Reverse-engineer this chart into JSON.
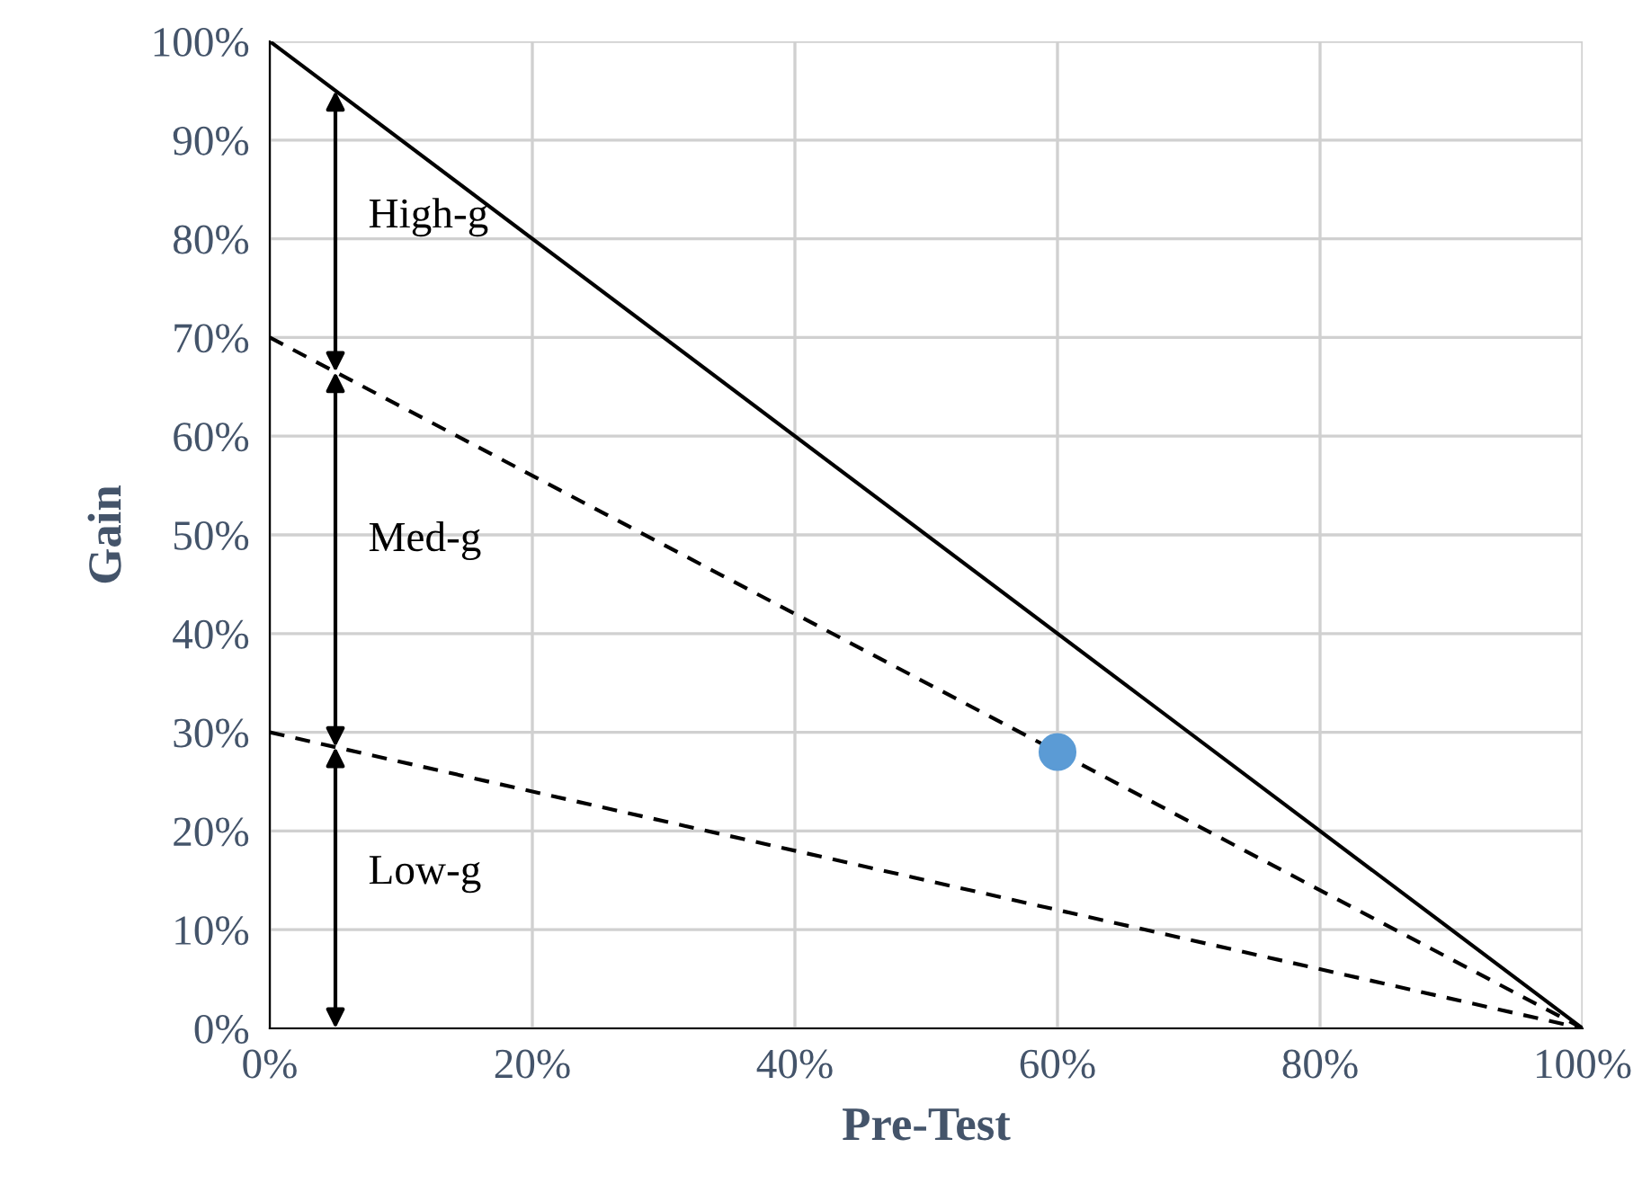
{
  "chart_data": {
    "type": "line",
    "xlabel": "Pre-Test",
    "ylabel": "Gain",
    "series": [
      {
        "x": [
          0,
          100
        ],
        "values": [
          100,
          0
        ],
        "color": "#000000",
        "line_style": "solid"
      },
      {
        "x": [
          0,
          100
        ],
        "values": [
          70,
          0
        ],
        "color": "#000000",
        "line_style": "dashed"
      },
      {
        "x": [
          0,
          100
        ],
        "values": [
          30,
          0
        ],
        "color": "#000000",
        "line_style": "dashed"
      },
      {
        "type": "scatter",
        "x": [
          60
        ],
        "values": [
          28
        ],
        "color": "#5b9bd5",
        "marker": "circle"
      }
    ],
    "annotations": [
      "High-g",
      "Med-g",
      "Low-g"
    ],
    "xlim": [
      0,
      100
    ],
    "ylim": [
      0,
      100
    ],
    "xticks": [
      {
        "value": 0,
        "label": "0%"
      },
      {
        "value": 20,
        "label": "20%"
      },
      {
        "value": 40,
        "label": "40%"
      },
      {
        "value": 60,
        "label": "60%"
      },
      {
        "value": 80,
        "label": "80%"
      },
      {
        "value": 100,
        "label": "100%"
      }
    ],
    "yticks": [
      {
        "value": 0,
        "label": "0%"
      },
      {
        "value": 10,
        "label": "10%"
      },
      {
        "value": 20,
        "label": "20%"
      },
      {
        "value": 30,
        "label": "30%"
      },
      {
        "value": 40,
        "label": "40%"
      },
      {
        "value": 50,
        "label": "50%"
      },
      {
        "value": 60,
        "label": "60%"
      },
      {
        "value": 70,
        "label": "70%"
      },
      {
        "value": 80,
        "label": "80%"
      },
      {
        "value": 90,
        "label": "90%"
      },
      {
        "value": 100,
        "label": "100%"
      }
    ],
    "grid": true
  }
}
